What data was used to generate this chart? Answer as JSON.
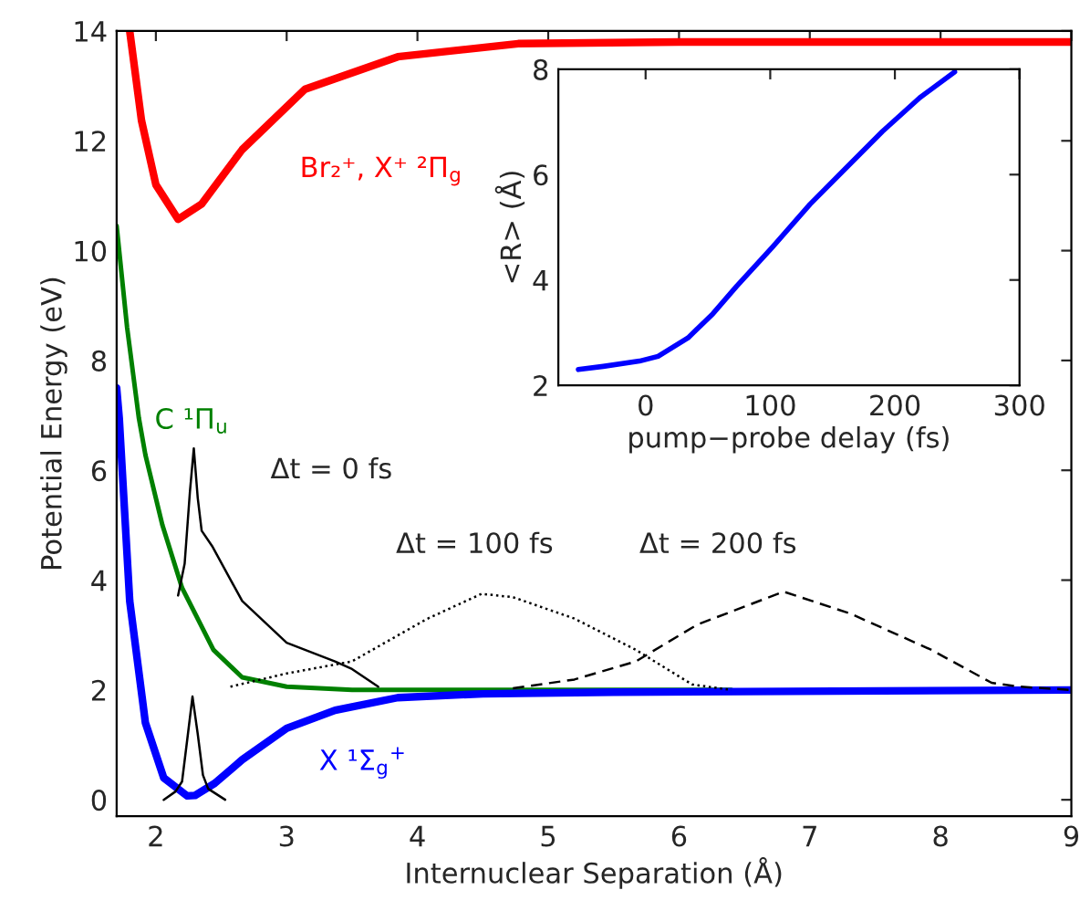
{
  "chart_data": [
    {
      "type": "line",
      "xlabel": "Internuclear Separation (Å)",
      "ylabel": "Potential Energy (eV)",
      "xlim": [
        1.7,
        9
      ],
      "ylim": [
        -0.3,
        14
      ],
      "xticks": [
        2,
        3,
        4,
        5,
        6,
        7,
        8,
        9
      ],
      "yticks": [
        0,
        2,
        4,
        6,
        8,
        10,
        12,
        14
      ],
      "series": [
        {
          "name": "Br₂⁺, X⁺ ²Π$_{g}$",
          "color": "#ff0000",
          "x": [
            1.8,
            1.89,
            2.0,
            2.17,
            2.35,
            2.66,
            3.14,
            3.85,
            4.77,
            6.0,
            9.0
          ],
          "values": [
            14.0,
            12.37,
            11.2,
            10.57,
            10.85,
            11.84,
            12.94,
            13.53,
            13.77,
            13.8,
            13.8
          ]
        },
        {
          "name": "C ¹Π$_{u}$",
          "color": "#008000",
          "x": [
            1.7,
            1.78,
            1.87,
            1.92,
            2.05,
            2.2,
            2.44,
            2.66,
            3.0,
            3.5,
            4.5,
            6.4
          ],
          "values": [
            10.45,
            8.6,
            6.95,
            6.28,
            5.0,
            3.86,
            2.73,
            2.23,
            2.06,
            2.0,
            2.0,
            2.0
          ]
        },
        {
          "name": "X ¹Σ$_{g}$$^{+}$",
          "color": "#0000ff",
          "x": [
            1.7,
            1.72,
            1.8,
            1.92,
            2.06,
            2.24,
            2.3,
            2.45,
            2.66,
            3.0,
            3.37,
            3.85,
            4.5,
            5.5,
            9.0
          ],
          "values": [
            7.5,
            6.95,
            3.62,
            1.4,
            0.4,
            0.07,
            0.08,
            0.3,
            0.73,
            1.3,
            1.63,
            1.86,
            1.93,
            1.96,
            2.0
          ]
        },
        {
          "color": "#000000",
          "line_style": "solid",
          "x": [
            2.06,
            2.15,
            2.2,
            2.24,
            2.28,
            2.32,
            2.36,
            2.4,
            2.53
          ],
          "values": [
            0.0,
            0.15,
            0.33,
            1.1,
            1.88,
            1.2,
            0.45,
            0.2,
            0.0
          ]
        },
        {
          "color": "#000000",
          "line_style": "solid",
          "x": [
            2.17,
            2.22,
            2.26,
            2.29,
            2.32,
            2.35,
            2.43,
            2.66,
            3.0,
            3.37,
            3.5,
            3.7
          ],
          "values": [
            3.72,
            4.3,
            5.6,
            6.4,
            5.5,
            4.9,
            4.62,
            3.62,
            2.86,
            2.52,
            2.38,
            2.06
          ]
        },
        {
          "color": "#000000",
          "line_style": "dotted",
          "x": [
            2.57,
            3.0,
            3.5,
            4.07,
            4.49,
            4.73,
            5.2,
            5.67,
            6.1,
            6.4
          ],
          "values": [
            2.06,
            2.3,
            2.52,
            3.29,
            3.75,
            3.69,
            3.3,
            2.73,
            2.1,
            2.0
          ]
        },
        {
          "color": "#000000",
          "line_style": "dashed",
          "x": [
            4.73,
            5.2,
            5.67,
            6.14,
            6.8,
            7.31,
            7.93,
            8.39,
            8.6,
            9.0
          ],
          "values": [
            2.03,
            2.19,
            2.52,
            3.19,
            3.79,
            3.39,
            2.73,
            2.13,
            2.06,
            2.0
          ]
        }
      ],
      "annotations": [
        "Δt = 0 fs",
        "Δt = 100 fs",
        "Δt = 200 fs"
      ]
    },
    {
      "type": "line",
      "xlabel": "pump−probe delay (fs)",
      "ylabel": "<R> (Å)",
      "xlim": [
        -70,
        300
      ],
      "ylim": [
        2,
        8
      ],
      "xticks": [
        0,
        100,
        200,
        300
      ],
      "yticks": [
        2,
        4,
        6,
        8
      ],
      "series": [
        {
          "color": "#0000ff",
          "x": [
            -54,
            -34,
            -5,
            10,
            34,
            54,
            73,
            102,
            132,
            161,
            190,
            220,
            248
          ],
          "values": [
            2.3,
            2.36,
            2.46,
            2.55,
            2.9,
            3.36,
            3.88,
            4.63,
            5.44,
            6.13,
            6.82,
            7.46,
            7.95
          ]
        }
      ]
    }
  ]
}
